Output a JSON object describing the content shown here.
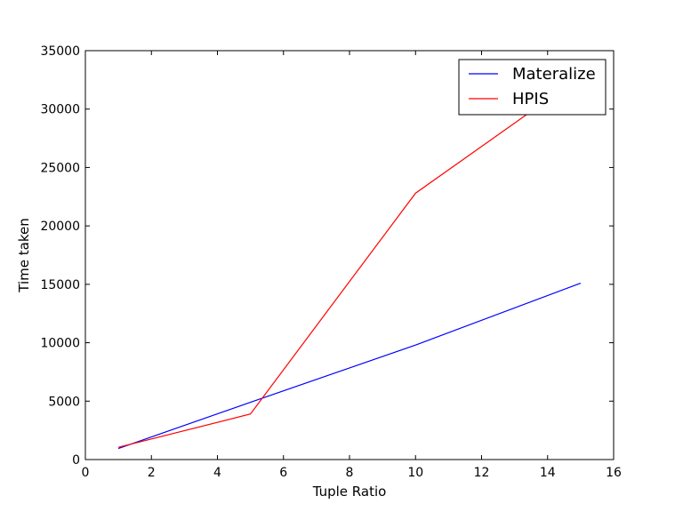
{
  "chart_data": {
    "type": "line",
    "title": "",
    "xlabel": "Tuple Ratio",
    "ylabel": "Time taken",
    "xlim": [
      0,
      16
    ],
    "ylim": [
      0,
      35000
    ],
    "xticks": [
      0,
      2,
      4,
      6,
      8,
      10,
      12,
      14,
      16
    ],
    "yticks": [
      0,
      5000,
      10000,
      15000,
      20000,
      25000,
      30000,
      35000
    ],
    "grid": false,
    "legend_position": "top-right",
    "series": [
      {
        "name": "Materalize",
        "color": "#0000ff",
        "x": [
          1,
          5,
          10,
          15
        ],
        "y": [
          950,
          4900,
          9800,
          15100
        ]
      },
      {
        "name": "HPIS",
        "color": "#ff0000",
        "x": [
          1,
          5,
          10,
          15
        ],
        "y": [
          1050,
          3900,
          22800,
          32800
        ]
      }
    ]
  }
}
